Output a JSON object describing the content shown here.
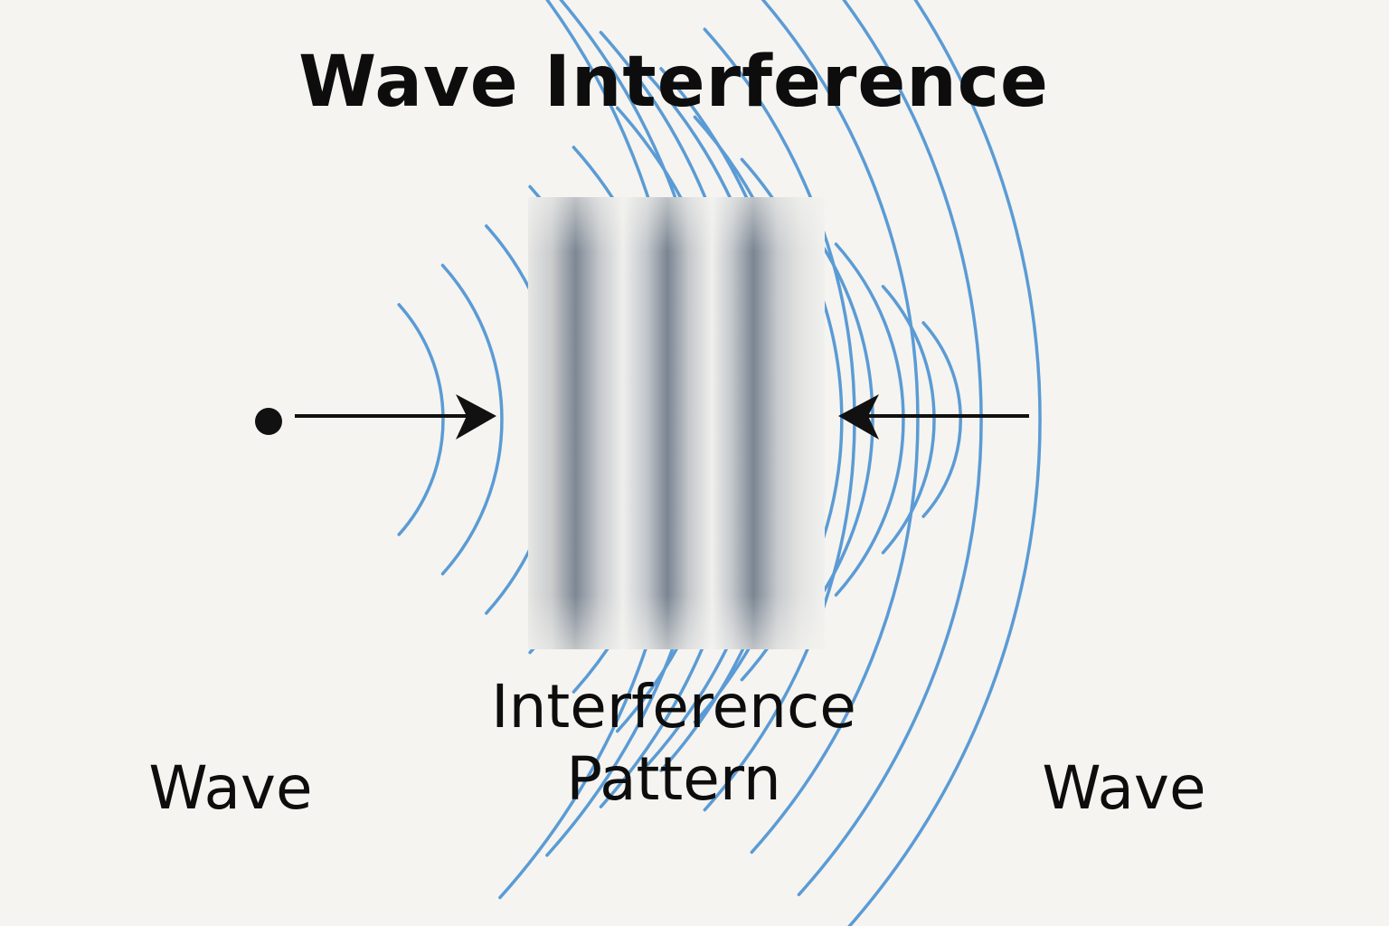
{
  "title": "Wave Interference",
  "left_wave": {
    "label": "Wave"
  },
  "right_wave": {
    "label": "Wave"
  },
  "pattern": {
    "line1": "Interference",
    "line2": "Pattern"
  },
  "colors": {
    "background": "#f5f4f0",
    "wavefront": "#5b9bd5",
    "arrow": "#111111",
    "text": "#0d0d0d",
    "fringe_dark": "#7d8794",
    "fringe_light": "#ececea"
  },
  "icons": {
    "source": "source-dot-icon",
    "arrow_right": "arrow-right-icon",
    "arrow_left": "arrow-left-icon"
  }
}
